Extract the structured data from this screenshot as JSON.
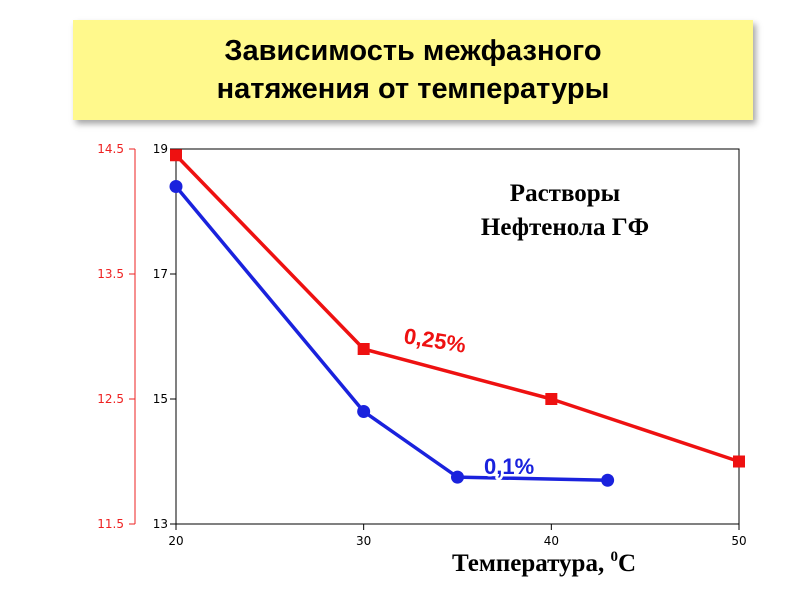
{
  "header": {
    "title_line1": "Зависимость межфазного",
    "title_line2": "натяжения от температуры"
  },
  "chart_data": {
    "type": "line",
    "annotation": [
      "Растворы",
      "Нефтенола ГФ"
    ],
    "xlabel": "Температура, ",
    "xlabel_sup": "0",
    "xlabel_unit": "С",
    "xlim": [
      20,
      50
    ],
    "x_ticks": [
      "20",
      "30",
      "40",
      "50"
    ],
    "y_left_ticks": [
      "14.5",
      "13.5",
      "12.5",
      "11.5"
    ],
    "y_right_ticks": [
      "19",
      "17",
      "15",
      "13"
    ],
    "ylim_left": [
      11.5,
      14.5
    ],
    "ylim_right": [
      13,
      19
    ],
    "grid": false,
    "series": [
      {
        "name": "0,25%",
        "axis": "left",
        "color": "#ee1111",
        "marker": "square",
        "points": [
          [
            20,
            14.45
          ],
          [
            30,
            12.9
          ],
          [
            40,
            12.5
          ],
          [
            50,
            12.0
          ]
        ]
      },
      {
        "name": "0,1%",
        "axis": "right",
        "color": "#1a22dd",
        "marker": "circle",
        "points": [
          [
            20,
            18.4
          ],
          [
            30,
            14.8
          ],
          [
            35,
            13.75
          ],
          [
            43,
            13.7
          ]
        ]
      }
    ],
    "colors": {
      "left_axis": "#ee2222",
      "right_axis": "#000000"
    }
  }
}
